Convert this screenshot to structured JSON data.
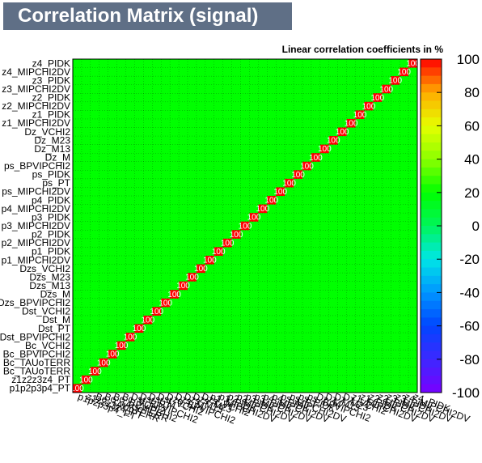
{
  "title": "Correlation Matrix (signal)",
  "subtitle": "Linear correlation coefficients in %",
  "colors": {
    "title_bg": "#5f6f86",
    "green": "#00ff00",
    "diagonal": "#ff0000",
    "frame": "#000000"
  },
  "chart_data": {
    "type": "heatmap",
    "title": "Correlation Matrix (signal)",
    "subtitle": "Linear correlation coefficients in %",
    "variables": [
      "p1p2p3p4_PT",
      "z1z2z3z4_PT",
      "Bc_TAUoTERR",
      "Bc_TAUoTERR",
      "Bc_BPVIPCHI2",
      "Bc_VCHI2",
      "Dst_BPVIPCHI2",
      "Dst_PT",
      "Dst_M",
      "Dst_VCHI2",
      "Dzs_BPVIPCHI2",
      "Dzs_M",
      "Dzs_M13",
      "Dzs_M23",
      "Dzs_VCHI2",
      "p1_MIPCHI2DV",
      "p1_PIDK",
      "p2_MIPCHI2DV",
      "p2_PIDK",
      "p3_MIPCHI2DV",
      "p3_PIDK",
      "p4_MIPCHI2DV",
      "p4_PIDK",
      "ps_MIPCHI2DV",
      "ps_PT",
      "ps_PIDK",
      "ps_BPVIPCHI2",
      "Dz_M",
      "Dz_M13",
      "Dz_M23",
      "Dz_VCHI2",
      "z1_MIPCHI2DV",
      "z1_PIDK",
      "z2_MIPCHI2DV",
      "z2_PIDK",
      "z3_MIPCHI2DV",
      "z3_PIDK",
      "z4_MIPCHI2DV",
      "z4_PIDK"
    ],
    "zlim": [
      -100,
      100
    ],
    "colorbar_ticks": [
      100,
      80,
      60,
      40,
      20,
      0,
      -20,
      -40,
      -60,
      -80,
      -100
    ],
    "diagonal_value": 100,
    "off_diagonal_values": "mostly small positive (0 to 20), rendered green; values are drawn as overlapping labels and are not individually legible",
    "grid": true,
    "colorbar": "right"
  }
}
